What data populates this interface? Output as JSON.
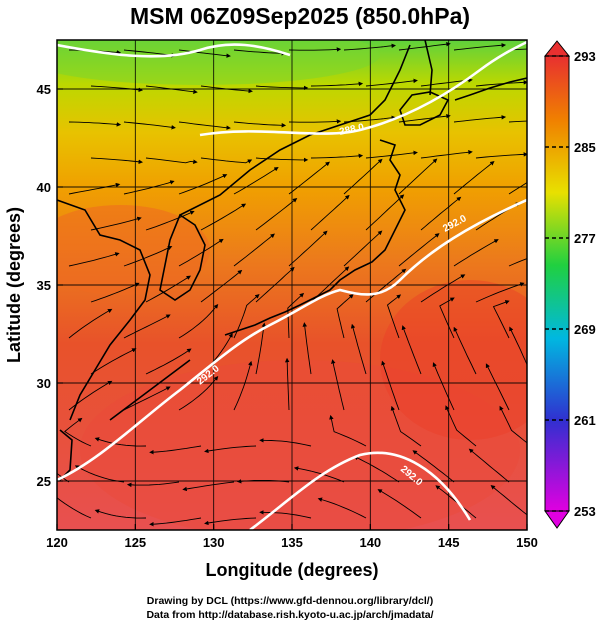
{
  "title": "MSM 06Z09Sep2025 (850.0hPa)",
  "x_axis": {
    "label": "Longitude (degrees)",
    "range": [
      120,
      150
    ],
    "ticks": [
      "120",
      "125",
      "130",
      "135",
      "140",
      "145",
      "150"
    ]
  },
  "y_axis": {
    "label": "Latitude  (degrees)",
    "range": [
      22.5,
      47.5
    ],
    "ticks": [
      "25",
      "30",
      "35",
      "40",
      "45"
    ]
  },
  "colorbar": {
    "range": [
      253,
      293
    ],
    "ticks": [
      "293",
      "285",
      "277",
      "269",
      "261",
      "253"
    ],
    "colors": [
      "#e000e0",
      "#3030d0",
      "#00b8e0",
      "#20d040",
      "#e8e000",
      "#f08000",
      "#e83030"
    ]
  },
  "contour_labels": [
    "288.0",
    "292.0",
    "292.0",
    "292.0"
  ],
  "credits": {
    "line1": "Drawing by DCL (https://www.gfd-dennou.org/library/dcl/)",
    "line2": "Data from http://database.rish.kyoto-u.ac.jp/arch/jmadata/"
  },
  "colors": {
    "cold_north": "#5fd23c",
    "mid": "#e6c400",
    "warm": "#ec7a1c",
    "hot": "#e8452a",
    "hottest": "#e85050",
    "contour": "#ffffff",
    "streamline": "#000000",
    "coast": "#000000"
  }
}
